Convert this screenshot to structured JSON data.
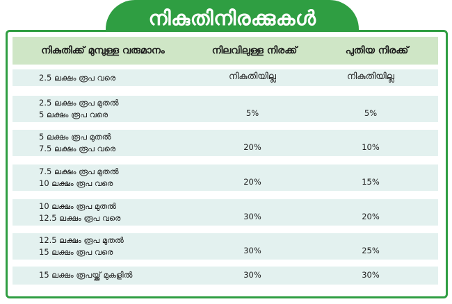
{
  "title": "നികുതിനിരക്കുകൾ",
  "header": {
    "col1": "നികുതിക്ക് മുമ്പുള്ള വരുമാനം",
    "col2": "നിലവിലുള്ള നിരക്ക്",
    "col3": "പുതിയ നിരക്ക്"
  },
  "rows": [
    {
      "income": [
        "2.5 ലക്ഷം രൂപ വരെ"
      ],
      "current": "നികുതിയില്ല",
      "new": "നികുതിയില്ല"
    },
    {
      "income": [
        "2.5 ലക്ഷം രൂപ മുതൽ",
        "5 ലക്ഷം രൂപ വരെ"
      ],
      "current": "5%",
      "new": "5%"
    },
    {
      "income": [
        "5 ലക്ഷം രൂപ മുതൽ",
        "7.5 ലക്ഷം രൂപ വരെ"
      ],
      "current": "20%",
      "new": "10%"
    },
    {
      "income": [
        "7.5 ലക്ഷം രൂപ മുതൽ",
        "10 ലക്ഷം രൂപ വരെ"
      ],
      "current": "20%",
      "new": "15%"
    },
    {
      "income": [
        "10 ലക്ഷം രൂപ മുതൽ",
        "12.5 ലക്ഷം രൂപ വരെ"
      ],
      "current": "30%",
      "new": "20%"
    },
    {
      "income": [
        "12.5 ലക്ഷം രൂപ മുതൽ",
        "15 ലക്ഷം രൂപ വരെ"
      ],
      "current": "30%",
      "new": "25%"
    },
    {
      "income": [
        "15 ലക്ഷം രൂപയ്ക്ക് മുകളിൽ"
      ],
      "current": "30%",
      "new": "30%"
    }
  ],
  "colors": {
    "accent": "#2f9e42",
    "header_bg": "#cfe6c6",
    "row_bg": "#e3f1ef"
  }
}
